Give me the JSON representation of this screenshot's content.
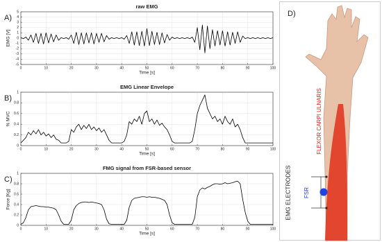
{
  "chart_data": [
    {
      "type": "line",
      "panel_label": "A)",
      "title": "raw EMG",
      "x_label": "Time [s]",
      "y_label": "EMG [V]",
      "color": "#000000",
      "grid": true,
      "xlim": [
        0,
        100
      ],
      "xticks": [
        0,
        10,
        20,
        30,
        40,
        50,
        60,
        70,
        80,
        90,
        100
      ],
      "ylim": [
        -5,
        5
      ],
      "yticks": [
        -5,
        -4,
        -3,
        -2,
        -1,
        0,
        1,
        2,
        3,
        4,
        5
      ],
      "x": [
        0,
        1,
        2,
        3,
        4,
        5,
        6,
        7,
        8,
        9,
        10,
        11,
        12,
        13,
        14,
        15,
        16,
        17,
        18,
        19,
        20,
        21,
        22,
        23,
        24,
        25,
        26,
        27,
        28,
        29,
        30,
        31,
        32,
        33,
        34,
        35,
        36,
        37,
        38,
        39,
        40,
        41,
        42,
        43,
        44,
        45,
        46,
        47,
        48,
        49,
        50,
        51,
        52,
        53,
        54,
        55,
        56,
        57,
        58,
        59,
        60,
        61,
        62,
        63,
        64,
        65,
        66,
        67,
        68,
        69,
        70,
        71,
        72,
        73,
        74,
        75,
        76,
        77,
        78,
        79,
        80,
        81,
        82,
        83,
        84,
        85,
        86,
        87,
        88,
        89,
        90,
        91,
        92,
        93,
        94,
        95,
        96,
        97,
        98,
        99,
        100
      ],
      "values": [
        0.1,
        -0.1,
        0.2,
        -0.4,
        0.6,
        -0.8,
        0.9,
        -1.0,
        0.9,
        -1.1,
        1.0,
        -0.9,
        0.8,
        -0.7,
        0.6,
        -0.4,
        0.1,
        -0.1,
        0.1,
        -0.2,
        0.6,
        -1.0,
        1.1,
        -1.2,
        1.0,
        -1.1,
        1.0,
        -0.9,
        1.0,
        -1.1,
        0.9,
        -0.8,
        0.9,
        -0.7,
        0.5,
        -0.2,
        0.1,
        -0.1,
        0.1,
        -0.1,
        0.1,
        -0.2,
        0.5,
        -1.0,
        1.2,
        -1.3,
        1.2,
        -1.4,
        1.3,
        -1.5,
        1.8,
        -1.4,
        1.3,
        -1.2,
        1.1,
        -1.2,
        1.0,
        -0.9,
        0.7,
        -0.4,
        0.2,
        -0.1,
        0.1,
        -0.1,
        0.1,
        -0.1,
        0.1,
        -0.1,
        0.2,
        -0.8,
        2.0,
        -2.2,
        2.5,
        -2.8,
        2.3,
        -2.0,
        1.6,
        -1.5,
        1.4,
        -1.3,
        1.4,
        -1.5,
        1.2,
        -1.3,
        1.1,
        -1.0,
        1.2,
        -0.8,
        0.4,
        -0.1,
        0.1,
        -0.1,
        0.1,
        -0.1,
        0.1,
        -0.1,
        0.1,
        -0.1,
        0.1,
        -0.1,
        0.1
      ]
    },
    {
      "type": "line",
      "panel_label": "B)",
      "title": "EMG Linear Envelope",
      "x_label": "Time [s]",
      "y_label": "% MVC",
      "color": "#000000",
      "grid": true,
      "xlim": [
        0,
        100
      ],
      "xticks": [
        0,
        10,
        20,
        30,
        40,
        50,
        60,
        70,
        80,
        90,
        100
      ],
      "ylim": [
        0,
        1
      ],
      "yticks": [
        0,
        0.2,
        0.4,
        0.6,
        0.8,
        1
      ],
      "x": [
        0,
        1,
        2,
        3,
        4,
        5,
        6,
        7,
        8,
        9,
        10,
        11,
        12,
        13,
        14,
        15,
        16,
        17,
        18,
        19,
        20,
        21,
        22,
        23,
        24,
        25,
        26,
        27,
        28,
        29,
        30,
        31,
        32,
        33,
        34,
        35,
        36,
        37,
        38,
        39,
        40,
        41,
        42,
        43,
        44,
        45,
        46,
        47,
        48,
        49,
        50,
        51,
        52,
        53,
        54,
        55,
        56,
        57,
        58,
        59,
        60,
        61,
        62,
        63,
        64,
        65,
        66,
        67,
        68,
        69,
        70,
        71,
        72,
        73,
        74,
        75,
        76,
        77,
        78,
        79,
        80,
        81,
        82,
        83,
        84,
        85,
        86,
        87,
        88,
        89,
        90,
        91,
        92,
        93,
        94,
        95,
        96,
        97,
        98,
        99,
        100
      ],
      "values": [
        0.05,
        0.1,
        0.15,
        0.25,
        0.2,
        0.28,
        0.22,
        0.3,
        0.2,
        0.25,
        0.18,
        0.22,
        0.15,
        0.2,
        0.12,
        0.1,
        0.05,
        0.05,
        0.05,
        0.08,
        0.3,
        0.25,
        0.35,
        0.4,
        0.3,
        0.38,
        0.32,
        0.4,
        0.3,
        0.35,
        0.28,
        0.33,
        0.25,
        0.3,
        0.2,
        0.1,
        0.05,
        0.05,
        0.05,
        0.05,
        0.05,
        0.08,
        0.2,
        0.45,
        0.4,
        0.5,
        0.45,
        0.55,
        0.4,
        0.6,
        0.65,
        0.45,
        0.5,
        0.4,
        0.48,
        0.38,
        0.42,
        0.35,
        0.3,
        0.2,
        0.08,
        0.05,
        0.05,
        0.05,
        0.05,
        0.05,
        0.05,
        0.05,
        0.08,
        0.3,
        0.6,
        0.75,
        0.85,
        0.95,
        0.7,
        0.6,
        0.5,
        0.55,
        0.45,
        0.5,
        0.4,
        0.55,
        0.45,
        0.4,
        0.5,
        0.35,
        0.4,
        0.3,
        0.15,
        0.05,
        0.05,
        0.05,
        0.05,
        0.05,
        0.05,
        0.05,
        0.05,
        0.05,
        0.05,
        0.05,
        0.05
      ]
    },
    {
      "type": "line",
      "panel_label": "C)",
      "title": "FMG signal from FSR-based sensor",
      "x_label": "Time [s]",
      "y_label": "Force [Kg]",
      "color": "#000000",
      "grid": true,
      "xlim": [
        0,
        100
      ],
      "xticks": [
        0,
        10,
        20,
        30,
        40,
        50,
        60,
        70,
        80,
        90,
        100
      ],
      "ylim": [
        0,
        1
      ],
      "yticks": [
        0,
        0.2,
        0.4,
        0.6,
        0.8,
        1
      ],
      "x": [
        0,
        1,
        2,
        3,
        4,
        5,
        6,
        7,
        8,
        9,
        10,
        11,
        12,
        13,
        14,
        15,
        16,
        17,
        18,
        19,
        20,
        21,
        22,
        23,
        24,
        25,
        26,
        27,
        28,
        29,
        30,
        31,
        32,
        33,
        34,
        35,
        36,
        37,
        38,
        39,
        40,
        41,
        42,
        43,
        44,
        45,
        46,
        47,
        48,
        49,
        50,
        51,
        52,
        53,
        54,
        55,
        56,
        57,
        58,
        59,
        60,
        61,
        62,
        63,
        64,
        65,
        66,
        67,
        68,
        69,
        70,
        71,
        72,
        73,
        74,
        75,
        76,
        77,
        78,
        79,
        80,
        81,
        82,
        83,
        84,
        85,
        86,
        87,
        88,
        89,
        90,
        91,
        92,
        93,
        94,
        95,
        96,
        97,
        98,
        99,
        100
      ],
      "values": [
        0.02,
        0.05,
        0.15,
        0.3,
        0.36,
        0.37,
        0.38,
        0.37,
        0.36,
        0.36,
        0.35,
        0.35,
        0.34,
        0.33,
        0.3,
        0.2,
        0.08,
        0.02,
        0.02,
        0.02,
        0.1,
        0.3,
        0.38,
        0.42,
        0.44,
        0.45,
        0.45,
        0.44,
        0.45,
        0.44,
        0.43,
        0.42,
        0.4,
        0.3,
        0.12,
        0.03,
        0.02,
        0.02,
        0.02,
        0.02,
        0.02,
        0.02,
        0.1,
        0.35,
        0.48,
        0.52,
        0.53,
        0.54,
        0.55,
        0.55,
        0.54,
        0.55,
        0.54,
        0.54,
        0.53,
        0.52,
        0.5,
        0.48,
        0.4,
        0.2,
        0.05,
        0.02,
        0.02,
        0.02,
        0.02,
        0.02,
        0.02,
        0.02,
        0.02,
        0.15,
        0.55,
        0.68,
        0.72,
        0.7,
        0.73,
        0.75,
        0.78,
        0.8,
        0.8,
        0.79,
        0.8,
        0.82,
        0.8,
        0.81,
        0.82,
        0.84,
        0.85,
        0.8,
        0.5,
        0.25,
        0.08,
        0.02,
        0.02,
        0.02,
        0.02,
        0.02,
        0.02,
        0.02,
        0.02,
        0.02,
        0.02
      ]
    }
  ],
  "panel_d": {
    "label": "D)",
    "muscle": "FLEXOR CARPI ULNARIS",
    "electrodes": "EMG ELECTRODES",
    "sensor": "FSR"
  }
}
